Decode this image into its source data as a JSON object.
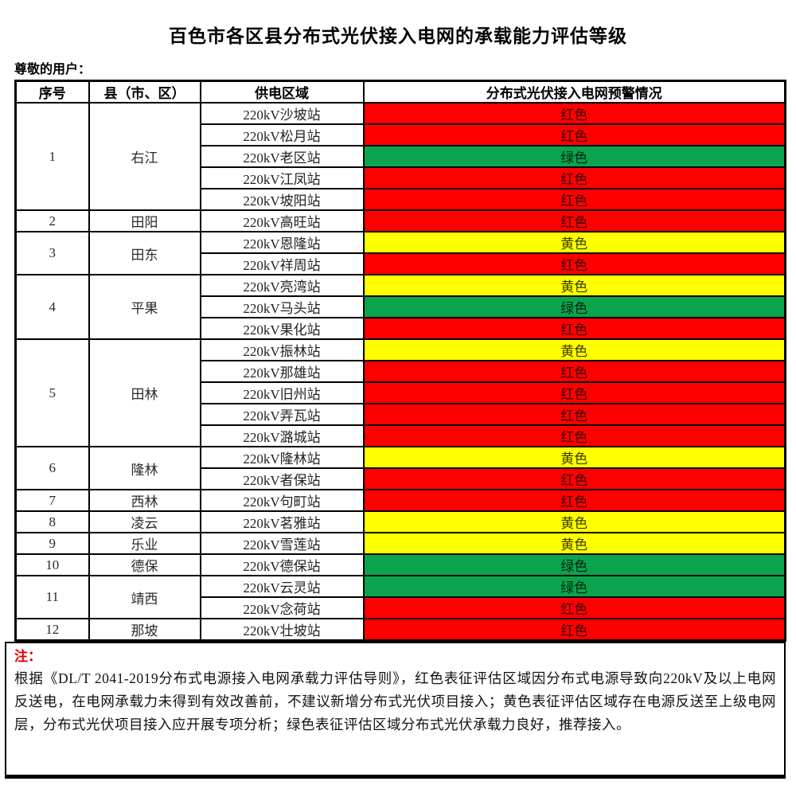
{
  "page": {
    "title": "百色市各区县分布式光伏接入电网的承载能力评估等级",
    "greeting": "尊敬的用户："
  },
  "colors": {
    "red": "#fe0000",
    "yellow": "#ffff00",
    "green": "#0aa44c"
  },
  "table": {
    "headers": [
      "序号",
      "县（市、区）",
      "供电区域",
      "分布式光伏接入电网预警情况"
    ],
    "groups": [
      {
        "no": "1",
        "county": "右江",
        "stations": [
          {
            "name": "220kV沙坡站",
            "level": "红色",
            "color": "red"
          },
          {
            "name": "220kV松月站",
            "level": "红色",
            "color": "red"
          },
          {
            "name": "220kV老区站",
            "level": "绿色",
            "color": "green"
          },
          {
            "name": "220kV江凤站",
            "level": "红色",
            "color": "red"
          },
          {
            "name": "220kV坡阳站",
            "level": "红色",
            "color": "red"
          }
        ]
      },
      {
        "no": "2",
        "county": "田阳",
        "stations": [
          {
            "name": "220kV高旺站",
            "level": "红色",
            "color": "red"
          }
        ]
      },
      {
        "no": "3",
        "county": "田东",
        "stations": [
          {
            "name": "220kV恩隆站",
            "level": "黄色",
            "color": "yellow"
          },
          {
            "name": "220kV祥周站",
            "level": "红色",
            "color": "red"
          }
        ]
      },
      {
        "no": "4",
        "county": "平果",
        "stations": [
          {
            "name": "220kV亮湾站",
            "level": "黄色",
            "color": "yellow"
          },
          {
            "name": "220kV马头站",
            "level": "绿色",
            "color": "green"
          },
          {
            "name": "220kV果化站",
            "level": "红色",
            "color": "red"
          }
        ]
      },
      {
        "no": "5",
        "county": "田林",
        "stations": [
          {
            "name": "220kV振林站",
            "level": "黄色",
            "color": "yellow"
          },
          {
            "name": "220kV那雄站",
            "level": "红色",
            "color": "red"
          },
          {
            "name": "220kV旧州站",
            "level": "红色",
            "color": "red"
          },
          {
            "name": "220kV弄瓦站",
            "level": "红色",
            "color": "red"
          },
          {
            "name": "220kV潞城站",
            "level": "红色",
            "color": "red"
          }
        ]
      },
      {
        "no": "6",
        "county": "隆林",
        "stations": [
          {
            "name": "220kV隆林站",
            "level": "黄色",
            "color": "yellow"
          },
          {
            "name": "220kV者保站",
            "level": "红色",
            "color": "red"
          }
        ]
      },
      {
        "no": "7",
        "county": "西林",
        "stations": [
          {
            "name": "220kV句町站",
            "level": "红色",
            "color": "red"
          }
        ]
      },
      {
        "no": "8",
        "county": "凌云",
        "stations": [
          {
            "name": "220kV茗雅站",
            "level": "黄色",
            "color": "yellow"
          }
        ]
      },
      {
        "no": "9",
        "county": "乐业",
        "stations": [
          {
            "name": "220kV雪莲站",
            "level": "黄色",
            "color": "yellow"
          }
        ]
      },
      {
        "no": "10",
        "county": "德保",
        "stations": [
          {
            "name": "220kV德保站",
            "level": "绿色",
            "color": "green"
          }
        ]
      },
      {
        "no": "11",
        "county": "靖西",
        "stations": [
          {
            "name": "220kV云灵站",
            "level": "绿色",
            "color": "green"
          },
          {
            "name": "220kV念荷站",
            "level": "红色",
            "color": "red"
          }
        ]
      },
      {
        "no": "12",
        "county": "那坡",
        "stations": [
          {
            "name": "220kV壮坡站",
            "level": "红色",
            "color": "red"
          }
        ]
      }
    ]
  },
  "note": {
    "label": "注：",
    "text": "根据《DL/T 2041-2019分布式电源接入电网承载力评估导则》，红色表征评估区域因分布式电源导致向220kV及以上电网反送电，在电网承载力未得到有效改善前，不建议新增分布式光伏项目接入；黄色表征评估区域存在电源反送至上级电网层，分布式光伏项目接入应开展专项分析；绿色表征评估区域分布式光伏承载力良好，推荐接入。"
  }
}
